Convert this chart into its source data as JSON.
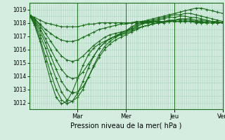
{
  "xlabel": "Pression niveau de la mer( hPa )",
  "ylim": [
    1011.5,
    1019.5
  ],
  "yticks": [
    1012,
    1013,
    1014,
    1015,
    1016,
    1017,
    1018,
    1019
  ],
  "bg_color": "#d4ede0",
  "grid_color": "#a8d4bc",
  "line_color": "#1a6b1a",
  "day_labels": [
    "Mar",
    "Mer",
    "Jeu",
    "Ven"
  ],
  "day_positions": [
    0.25,
    0.5,
    0.75,
    1.0
  ],
  "series": [
    [
      1018.6,
      1018.4,
      1018.2,
      1018.0,
      1017.9,
      1017.8,
      1017.7,
      1017.7,
      1017.7,
      1017.7,
      1017.8,
      1017.9,
      1017.9,
      1018.0,
      1018.0,
      1018.0,
      1018.0,
      1018.0,
      1018.0,
      1018.0,
      1018.1,
      1018.1,
      1018.1,
      1018.1,
      1018.1,
      1018.1,
      1018.1,
      1018.1,
      1018.1,
      1018.1,
      1018.1,
      1018.0,
      1018.0,
      1018.0,
      1018.0,
      1018.0,
      1018.0
    ],
    [
      1018.6,
      1018.3,
      1017.9,
      1017.5,
      1017.2,
      1016.9,
      1016.7,
      1016.6,
      1016.6,
      1016.7,
      1016.9,
      1017.1,
      1017.3,
      1017.5,
      1017.6,
      1017.7,
      1017.8,
      1017.9,
      1017.9,
      1018.0,
      1018.0,
      1018.0,
      1018.0,
      1018.0,
      1018.1,
      1018.1,
      1018.1,
      1018.1,
      1018.1,
      1018.1,
      1018.1,
      1018.1,
      1018.0,
      1018.0,
      1018.0,
      1018.0,
      1018.0
    ],
    [
      1018.6,
      1018.3,
      1017.8,
      1017.2,
      1016.6,
      1016.0,
      1015.5,
      1015.2,
      1015.1,
      1015.2,
      1015.5,
      1015.9,
      1016.3,
      1016.6,
      1016.9,
      1017.1,
      1017.2,
      1017.3,
      1017.4,
      1017.5,
      1017.6,
      1017.7,
      1017.8,
      1017.9,
      1018.0,
      1018.0,
      1018.1,
      1018.1,
      1018.1,
      1018.1,
      1018.1,
      1018.1,
      1018.1,
      1018.0,
      1018.0,
      1018.0,
      1018.0
    ],
    [
      1018.6,
      1018.2,
      1017.6,
      1016.8,
      1016.0,
      1015.2,
      1014.5,
      1014.0,
      1013.8,
      1013.9,
      1014.3,
      1014.9,
      1015.5,
      1016.1,
      1016.5,
      1016.8,
      1017.0,
      1017.1,
      1017.2,
      1017.4,
      1017.5,
      1017.7,
      1017.8,
      1017.9,
      1018.0,
      1018.1,
      1018.1,
      1018.2,
      1018.2,
      1018.2,
      1018.2,
      1018.1,
      1018.1,
      1018.0,
      1018.0,
      1018.0,
      1018.0
    ],
    [
      1018.6,
      1018.1,
      1017.4,
      1016.5,
      1015.5,
      1014.5,
      1013.6,
      1013.0,
      1012.7,
      1012.8,
      1013.2,
      1013.9,
      1014.7,
      1015.4,
      1016.0,
      1016.4,
      1016.7,
      1016.9,
      1017.1,
      1017.3,
      1017.5,
      1017.7,
      1017.8,
      1017.9,
      1018.0,
      1018.1,
      1018.2,
      1018.2,
      1018.3,
      1018.3,
      1018.3,
      1018.2,
      1018.2,
      1018.1,
      1018.1,
      1018.0,
      1018.0
    ],
    [
      1018.6,
      1018.0,
      1017.1,
      1016.1,
      1014.9,
      1013.8,
      1012.8,
      1012.2,
      1012.1,
      1012.4,
      1013.0,
      1013.9,
      1014.8,
      1015.6,
      1016.2,
      1016.6,
      1016.9,
      1017.1,
      1017.3,
      1017.5,
      1017.7,
      1017.9,
      1018.0,
      1018.1,
      1018.2,
      1018.3,
      1018.4,
      1018.4,
      1018.5,
      1018.5,
      1018.4,
      1018.4,
      1018.3,
      1018.2,
      1018.1,
      1018.1,
      1018.0
    ],
    [
      1018.6,
      1017.9,
      1016.8,
      1015.5,
      1014.2,
      1013.0,
      1012.2,
      1011.9,
      1012.1,
      1012.7,
      1013.6,
      1014.6,
      1015.5,
      1016.1,
      1016.5,
      1016.8,
      1017.0,
      1017.2,
      1017.4,
      1017.6,
      1017.8,
      1018.0,
      1018.1,
      1018.2,
      1018.3,
      1018.4,
      1018.5,
      1018.6,
      1018.6,
      1018.7,
      1018.7,
      1018.6,
      1018.5,
      1018.4,
      1018.3,
      1018.2,
      1018.1
    ],
    [
      1018.6,
      1017.8,
      1016.6,
      1015.1,
      1013.6,
      1012.4,
      1011.9,
      1012.1,
      1012.8,
      1013.8,
      1014.8,
      1015.6,
      1016.1,
      1016.4,
      1016.6,
      1016.8,
      1017.0,
      1017.2,
      1017.4,
      1017.7,
      1017.9,
      1018.1,
      1018.2,
      1018.3,
      1018.4,
      1018.5,
      1018.6,
      1018.7,
      1018.8,
      1018.9,
      1019.0,
      1019.1,
      1019.1,
      1019.0,
      1018.9,
      1018.8,
      1018.7
    ]
  ]
}
